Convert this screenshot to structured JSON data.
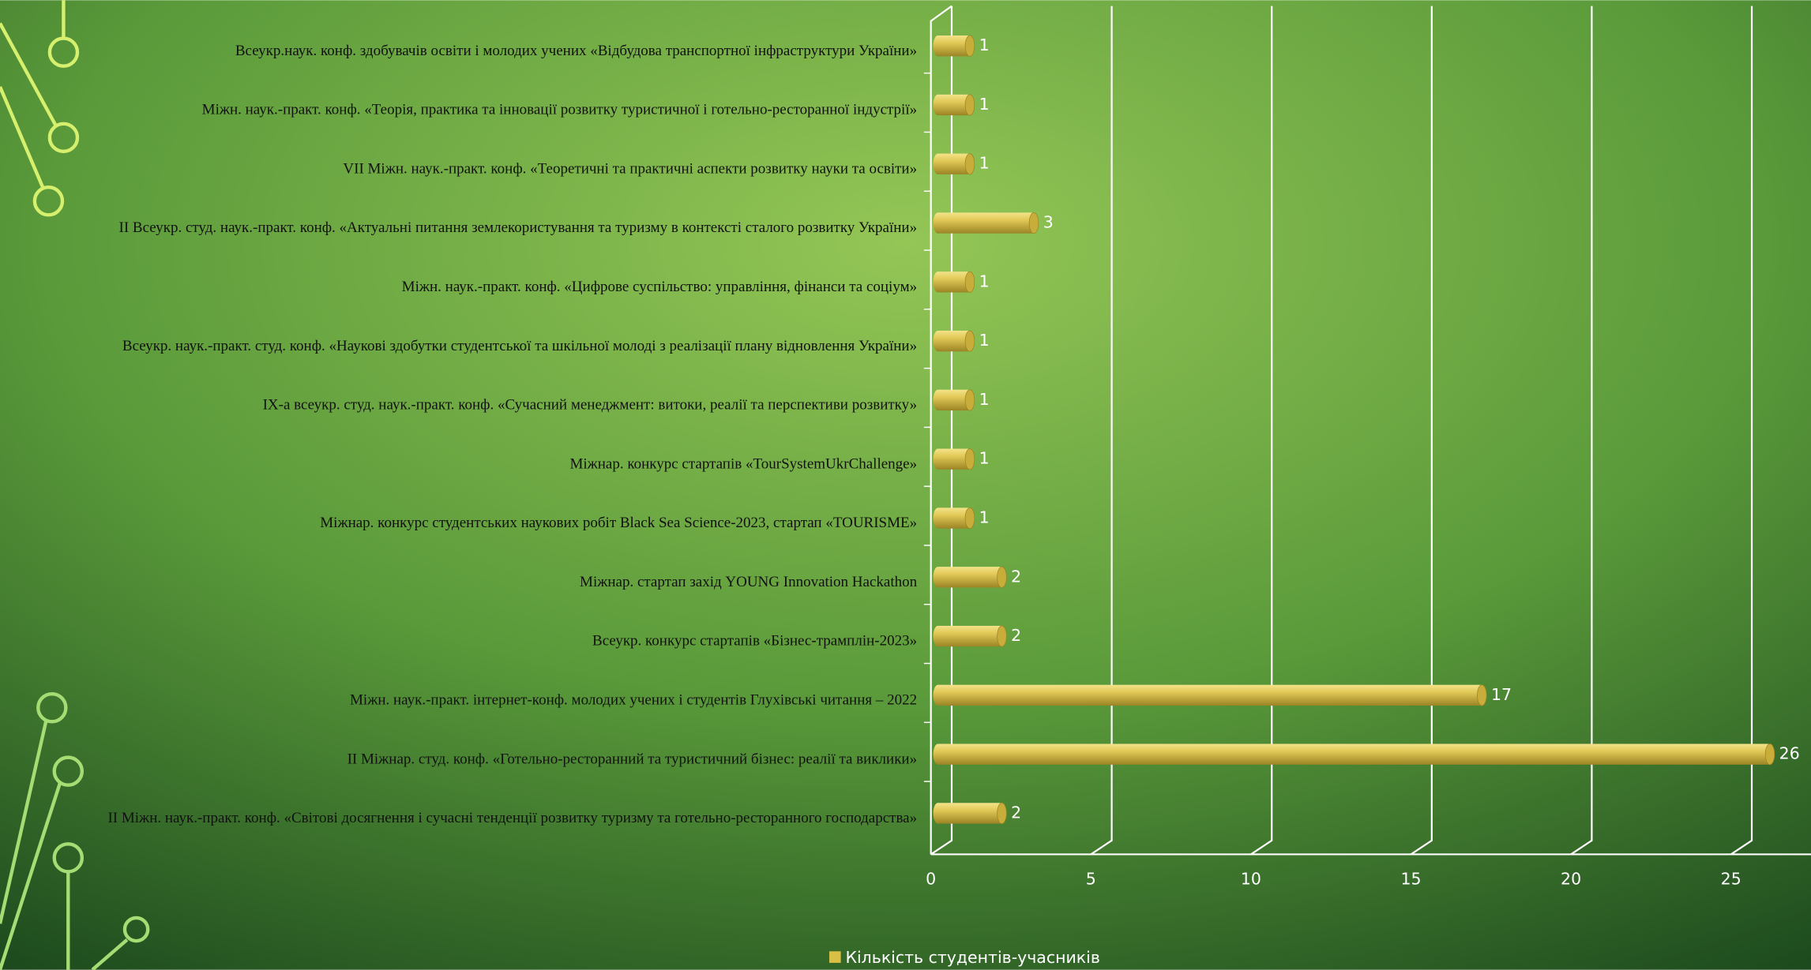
{
  "chart_data": {
    "type": "bar",
    "orientation": "horizontal",
    "categories": [
      "Всеукр.наук. конф. здобувачів освіти і молодих учених «Відбудова транспортної інфраструктури України»",
      "Міжн. наук.-практ. конф. «Теорія, практика та інновації розвитку туристичної і готельно-ресторанної індустрії»",
      "VII Міжн. наук.-практ. конф. «Теоретичні та практичні аспекти розвитку науки та освіти»",
      "II Всеукр. студ. наук.-практ. конф. «Актуальні питання землекористування та  туризму в контексті сталого розвитку України»",
      "Міжн. наук.-практ. конф. «Цифрове суспільство: управління, фінанси та соціум»",
      "Всеукр. наук.-практ. студ. конф. «Наукові здобутки студентської та шкільної молоді з реалізації плану відновлення України»",
      "IX-а всеукр. студ. наук.-практ. конф. «Сучасний менеджмент: витоки, реалії та перспективи розвитку»",
      "Міжнар. конкурс стартапів  «TourSystemUkrChallenge»",
      "Міжнар. конкурс студентських наукових робіт Black Sea Science-2023, стартап «TOURISME»",
      "Міжнар. стартап захід YOUNG Innovation Hackathon",
      "Всеукр. конкурс стартапів «Бізнес-трамплін-2023»",
      "Міжн. наук.-практ. інтернет-конф. молодих учених і студентів Глухівські читання – 2022",
      "II Міжнар. студ. конф. «Готельно-ресторанний та туристичний бізнес: реалії та виклики»",
      "II Міжн. наук.-практ. конф. «Світові досягнення і сучасні тенденції розвитку туризму та готельно-ресторанного господарства»"
    ],
    "series": [
      {
        "name": "Кількість студентів-учасників",
        "color": "#d9bf45",
        "values": [
          1,
          1,
          1,
          3,
          1,
          1,
          1,
          1,
          1,
          2,
          2,
          17,
          26,
          2
        ]
      }
    ],
    "xlim": [
      0,
      27.5
    ],
    "xticks": [
      0,
      5,
      10,
      15,
      20,
      25
    ],
    "grid": true,
    "legend": "bottom"
  }
}
